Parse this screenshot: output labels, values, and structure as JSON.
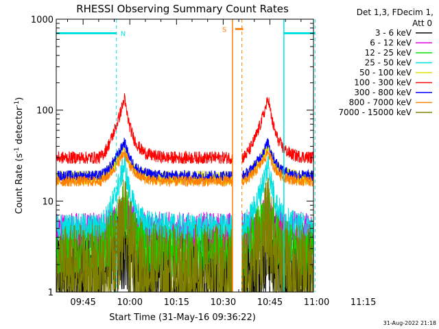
{
  "chart_data": {
    "type": "line",
    "title": "RHESSI Observing Summary Count Rates",
    "xlabel": "Start Time (31-May-16 09:36:22)",
    "ylabel_main": "Count Rate (s",
    "ylabel_sup1": "-1",
    "ylabel_mid": " detector",
    "ylabel_sup2": "-1",
    "ylabel_end": ")",
    "yscale": "log",
    "ylim": [
      1,
      1000
    ],
    "xlim_min": [
      36.37,
      119
    ],
    "x_ticks": [
      {
        "min": 45,
        "label": "09:45"
      },
      {
        "min": 60,
        "label": "10:00"
      },
      {
        "min": 75,
        "label": "10:15"
      },
      {
        "min": 90,
        "label": "10:30"
      },
      {
        "min": 105,
        "label": "10:45"
      },
      {
        "min": 120,
        "label": "11:00"
      },
      {
        "min": 135,
        "label": "11:15"
      }
    ],
    "x_ticks_note": "tick minutes are minutes after 09:00",
    "y_ticks": [
      {
        "value": 1,
        "label": "1"
      },
      {
        "value": 10,
        "label": "10"
      },
      {
        "value": 100,
        "label": "100"
      },
      {
        "value": 1000,
        "label": "1000"
      }
    ],
    "legend": {
      "header_line1": "Det 1,3, FDecim 1,",
      "header_line2": "Att 0",
      "placement": "right"
    },
    "series": [
      {
        "name": "3 - 6 keV",
        "color": "#000000",
        "base": 1.6,
        "peak": 3.5,
        "noise": 0.55
      },
      {
        "name": "6 - 12 keV",
        "color": "#e400e4",
        "base": 4.6,
        "peak": 7.5,
        "noise": 0.22
      },
      {
        "name": "12 - 25 keV",
        "color": "#00e000",
        "base": 2.8,
        "peak": 8.5,
        "noise": 0.3
      },
      {
        "name": "25 - 50 keV",
        "color": "#00e0e0",
        "base": 5.2,
        "peak": 26,
        "noise": 0.15
      },
      {
        "name": "50 - 100 keV",
        "color": "#e0e000",
        "base": 18,
        "peak": 40,
        "noise": 0.08
      },
      {
        "name": "100 - 300 keV",
        "color": "#ff0000",
        "base": 30,
        "peak": 135,
        "noise": 0.07
      },
      {
        "name": "300 - 800 keV",
        "color": "#0000ff",
        "base": 19,
        "peak": 45,
        "noise": 0.06
      },
      {
        "name": "800 - 7000 keV",
        "color": "#ff8000",
        "base": 16.5,
        "peak": 35,
        "noise": 0.06
      },
      {
        "name": "7000 - 15000 keV",
        "color": "#808000",
        "base": 1.6,
        "peak": 5.5,
        "noise": 0.55
      }
    ],
    "flares": [
      {
        "start": 50,
        "peak": 58.3,
        "end": 72
      },
      {
        "start": 96,
        "peak": 104.5,
        "end": 118
      }
    ],
    "gap": {
      "start": 93,
      "end": 96
    },
    "night_bars": [
      {
        "label": "N",
        "start": 36.37,
        "end": 55.7,
        "level": 700,
        "color": "#00e0e0"
      },
      {
        "label": "",
        "start": 109.5,
        "end": 119.5,
        "level": 700,
        "color": "#00e0e0"
      }
    ],
    "saa_bar": {
      "label": "S",
      "start": 93,
      "end": 96,
      "level": 780,
      "color": "#ff8000"
    },
    "vertical_markers": [
      {
        "min": 55.7,
        "color": "#00e0e0",
        "style": "dashed"
      },
      {
        "min": 109.5,
        "color": "#00e0e0",
        "style": "solid"
      },
      {
        "min": 119.5,
        "color": "#00e0e0",
        "style": "dashed"
      },
      {
        "min": 93,
        "color": "#ff8000",
        "style": "solid"
      },
      {
        "min": 96,
        "color": "#ff8000",
        "style": "dashed"
      }
    ]
  },
  "footer": {
    "timestamp": "31-Aug-2022 21:18"
  }
}
